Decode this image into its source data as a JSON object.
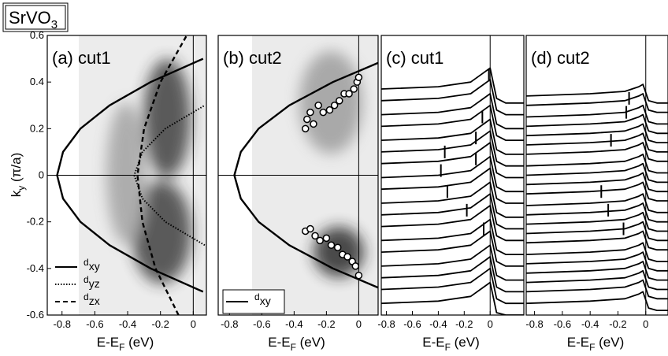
{
  "title": "SrVO",
  "title_sub": "3",
  "ylabel": [
    "k",
    "y",
    " (π/a)"
  ],
  "chart_data": [
    {
      "type": "line",
      "label": "(a) cut1",
      "xlabel": [
        "E-E",
        "F",
        " (eV)"
      ],
      "xlim": [
        -0.89,
        0.08
      ],
      "xticks": [
        -0.8,
        -0.6,
        -0.4,
        -0.2,
        0
      ],
      "ylim": [
        -0.6,
        0.6
      ],
      "yticks": [
        -0.6,
        -0.4,
        -0.2,
        0,
        0.2,
        0.4,
        0.6
      ],
      "zero_lines": true,
      "legend": "lower left",
      "series": [
        {
          "name": "d",
          "name_sub": "xy",
          "style": "solid",
          "color": "#000000",
          "x": [
            0.06,
            -0.26,
            -0.51,
            -0.688,
            -0.794,
            -0.83,
            -0.794,
            -0.688,
            -0.51,
            -0.26,
            0.06
          ],
          "values": [
            -0.5,
            -0.4,
            -0.3,
            -0.2,
            -0.1,
            0,
            0.1,
            0.2,
            0.3,
            0.4,
            0.5
          ]
        },
        {
          "name": "d",
          "name_sub": "yz",
          "style": "dotted",
          "color": "#000000",
          "x": [
            0.07,
            -0.17,
            -0.31,
            -0.36,
            -0.31,
            -0.17,
            0.07
          ],
          "values": [
            -0.3,
            -0.2,
            -0.1,
            0,
            0.1,
            0.2,
            0.3
          ]
        },
        {
          "name": "d",
          "name_sub": "zx",
          "style": "dashed",
          "color": "#000000",
          "x": [
            -0.09,
            -0.23,
            -0.31,
            -0.34,
            -0.3,
            -0.2,
            -0.04
          ],
          "values": [
            -0.6,
            -0.4,
            -0.2,
            0,
            0.2,
            0.4,
            0.6
          ]
        }
      ]
    },
    {
      "type": "line",
      "label": "(b) cut2",
      "xlabel": [
        "E-E",
        "F",
        " (eV)"
      ],
      "xlim": [
        -0.87,
        0.12
      ],
      "xticks": [
        -0.8,
        -0.6,
        -0.4,
        -0.2,
        0
      ],
      "ylim": [
        -0.6,
        0.6
      ],
      "zero_lines": true,
      "legend": "lower left",
      "series": [
        {
          "name": "d",
          "name_sub": "xy",
          "style": "solid",
          "color": "#000000",
          "x": [
            0.18,
            -0.16,
            -0.43,
            -0.62,
            -0.73,
            -0.77,
            -0.73,
            -0.62,
            -0.43,
            -0.16,
            0.18
          ],
          "values": [
            -0.5,
            -0.4,
            -0.3,
            -0.2,
            -0.1,
            0,
            0.1,
            0.2,
            0.3,
            0.4,
            0.5
          ]
        },
        {
          "style": "markers",
          "color": "#000000",
          "x": [
            -0.33,
            -0.32,
            -0.3,
            -0.28,
            -0.25,
            -0.22,
            -0.18,
            -0.15,
            -0.12,
            -0.09,
            -0.06,
            -0.03,
            -0.01,
            0,
            -0.33,
            -0.3,
            -0.27,
            -0.24,
            -0.2,
            -0.17,
            -0.13,
            -0.1,
            -0.07,
            -0.04,
            -0.02,
            0
          ],
          "values": [
            0.2,
            0.24,
            0.27,
            0.22,
            0.3,
            0.27,
            0.28,
            0.3,
            0.32,
            0.35,
            0.35,
            0.37,
            0.4,
            0.42,
            -0.24,
            -0.23,
            -0.26,
            -0.28,
            -0.27,
            -0.3,
            -0.31,
            -0.34,
            -0.35,
            -0.37,
            -0.39,
            -0.43
          ]
        }
      ]
    },
    {
      "type": "line",
      "label": "(c) cut1",
      "xlabel": [
        "E-E",
        "F",
        " (eV)"
      ],
      "xlim": [
        -0.84,
        0.26
      ],
      "xticks": [
        -0.8,
        -0.6,
        -0.4,
        -0.2,
        0
      ],
      "ylim": [
        -0.6,
        0.6
      ],
      "x": [
        -0.84,
        -0.4,
        -0.15,
        -0.05,
        0,
        0.05,
        0.12,
        0.26
      ],
      "series": [
        {
          "style": "solid",
          "color": "#000000",
          "values": [
            0.37,
            0.38,
            0.4,
            0.44,
            0.46,
            0.33,
            0.31,
            0.31
          ]
        },
        {
          "style": "solid",
          "color": "#000000",
          "values": [
            0.32,
            0.33,
            0.35,
            0.39,
            0.41,
            0.28,
            0.26,
            0.26
          ]
        },
        {
          "style": "solid",
          "color": "#000000",
          "values": [
            0.26,
            0.27,
            0.29,
            0.33,
            0.35,
            0.22,
            0.2,
            0.2
          ]
        },
        {
          "style": "solid",
          "color": "#000000",
          "values": [
            0.21,
            0.22,
            0.24,
            0.28,
            0.3,
            0.17,
            0.15,
            0.15
          ]
        },
        {
          "style": "solid",
          "color": "#000000",
          "values": [
            0.15,
            0.16,
            0.18,
            0.22,
            0.24,
            0.11,
            0.09,
            0.09
          ]
        },
        {
          "style": "solid",
          "color": "#000000",
          "values": [
            0.1,
            0.11,
            0.13,
            0.17,
            0.19,
            0.06,
            0.04,
            0.04
          ]
        },
        {
          "style": "solid",
          "color": "#000000",
          "values": [
            0.05,
            0.06,
            0.08,
            0.12,
            0.14,
            0.01,
            -0.01,
            -0.01
          ]
        },
        {
          "style": "solid",
          "color": "#000000",
          "values": [
            -0.01,
            0,
            0.02,
            0.06,
            0.08,
            -0.05,
            -0.07,
            -0.07
          ]
        },
        {
          "style": "solid",
          "color": "#000000",
          "values": [
            -0.06,
            -0.05,
            -0.03,
            0.01,
            0.03,
            -0.1,
            -0.12,
            -0.12
          ]
        },
        {
          "style": "solid",
          "color": "#000000",
          "values": [
            -0.12,
            -0.11,
            -0.09,
            -0.05,
            -0.03,
            -0.16,
            -0.18,
            -0.18
          ]
        },
        {
          "style": "solid",
          "color": "#000000",
          "values": [
            -0.17,
            -0.16,
            -0.14,
            -0.1,
            -0.08,
            -0.21,
            -0.23,
            -0.23
          ]
        },
        {
          "style": "solid",
          "color": "#000000",
          "values": [
            -0.22,
            -0.21,
            -0.19,
            -0.15,
            -0.13,
            -0.26,
            -0.28,
            -0.28
          ]
        },
        {
          "style": "solid",
          "color": "#000000",
          "values": [
            -0.28,
            -0.27,
            -0.25,
            -0.21,
            -0.19,
            -0.32,
            -0.34,
            -0.34
          ]
        },
        {
          "style": "solid",
          "color": "#000000",
          "values": [
            -0.33,
            -0.32,
            -0.3,
            -0.26,
            -0.24,
            -0.37,
            -0.39,
            -0.39
          ]
        },
        {
          "style": "solid",
          "color": "#000000",
          "values": [
            -0.39,
            -0.38,
            -0.36,
            -0.32,
            -0.3,
            -0.43,
            -0.45,
            -0.45
          ]
        },
        {
          "style": "solid",
          "color": "#000000",
          "values": [
            -0.44,
            -0.43,
            -0.41,
            -0.37,
            -0.35,
            -0.48,
            -0.5,
            -0.5
          ]
        },
        {
          "style": "solid",
          "color": "#000000",
          "values": [
            -0.49,
            -0.48,
            -0.46,
            -0.42,
            -0.4,
            -0.53,
            -0.55,
            -0.55
          ]
        },
        {
          "style": "solid",
          "color": "#000000",
          "values": [
            -0.55,
            -0.54,
            -0.52,
            -0.48,
            -0.46,
            -0.59,
            -0.6,
            -0.6
          ]
        },
        {
          "style": "ticks",
          "color": "#000000",
          "x": [
            -0.01,
            -0.06,
            -0.11,
            -0.11,
            -0.35,
            -0.38,
            -0.33,
            -0.18,
            -0.05
          ],
          "values": [
            0.43,
            0.25,
            0.16,
            0.07,
            0.1,
            0.02,
            -0.07,
            -0.15,
            -0.23
          ]
        }
      ]
    },
    {
      "type": "line",
      "label": "(d) cut2",
      "xlabel": [
        "E-E",
        "F",
        " (eV)"
      ],
      "xlim": [
        -0.86,
        0.16
      ],
      "xticks": [
        -0.8,
        -0.6,
        -0.4,
        -0.2,
        0
      ],
      "ylim": [
        -0.6,
        0.6
      ],
      "x": [
        -0.86,
        -0.4,
        -0.15,
        -0.05,
        -0.02,
        0.02,
        0.08,
        0.16
      ],
      "series": [
        {
          "style": "solid",
          "color": "#000000",
          "values": [
            0.34,
            0.35,
            0.36,
            0.38,
            0.39,
            0.32,
            0.31,
            0.31
          ]
        },
        {
          "style": "solid",
          "color": "#000000",
          "values": [
            0.3,
            0.31,
            0.32,
            0.34,
            0.35,
            0.28,
            0.27,
            0.27
          ]
        },
        {
          "style": "solid",
          "color": "#000000",
          "values": [
            0.25,
            0.26,
            0.27,
            0.29,
            0.3,
            0.23,
            0.22,
            0.22
          ]
        },
        {
          "style": "solid",
          "color": "#000000",
          "values": [
            0.21,
            0.22,
            0.23,
            0.25,
            0.26,
            0.19,
            0.18,
            0.18
          ]
        },
        {
          "style": "solid",
          "color": "#000000",
          "values": [
            0.17,
            0.18,
            0.19,
            0.21,
            0.22,
            0.15,
            0.14,
            0.14
          ]
        },
        {
          "style": "solid",
          "color": "#000000",
          "values": [
            0.13,
            0.14,
            0.15,
            0.17,
            0.18,
            0.11,
            0.1,
            0.1
          ]
        },
        {
          "style": "solid",
          "color": "#000000",
          "values": [
            0.09,
            0.1,
            0.11,
            0.13,
            0.14,
            0.07,
            0.06,
            0.06
          ]
        },
        {
          "style": "solid",
          "color": "#000000",
          "values": [
            0.04,
            0.05,
            0.06,
            0.08,
            0.09,
            0.02,
            0.01,
            0.01
          ]
        },
        {
          "style": "solid",
          "color": "#000000",
          "values": [
            0,
            0.01,
            0.02,
            0.04,
            0.05,
            -0.02,
            -0.03,
            -0.03
          ]
        },
        {
          "style": "solid",
          "color": "#000000",
          "values": [
            -0.04,
            -0.03,
            -0.02,
            0,
            0.01,
            -0.06,
            -0.07,
            -0.07
          ]
        },
        {
          "style": "solid",
          "color": "#000000",
          "values": [
            -0.08,
            -0.07,
            -0.06,
            -0.04,
            -0.03,
            -0.1,
            -0.11,
            -0.11
          ]
        },
        {
          "style": "solid",
          "color": "#000000",
          "values": [
            -0.13,
            -0.12,
            -0.11,
            -0.09,
            -0.08,
            -0.15,
            -0.16,
            -0.16
          ]
        },
        {
          "style": "solid",
          "color": "#000000",
          "values": [
            -0.17,
            -0.16,
            -0.15,
            -0.13,
            -0.12,
            -0.19,
            -0.2,
            -0.2
          ]
        },
        {
          "style": "solid",
          "color": "#000000",
          "values": [
            -0.21,
            -0.2,
            -0.19,
            -0.17,
            -0.16,
            -0.23,
            -0.24,
            -0.24
          ]
        },
        {
          "style": "solid",
          "color": "#000000",
          "values": [
            -0.25,
            -0.24,
            -0.23,
            -0.21,
            -0.2,
            -0.27,
            -0.28,
            -0.28
          ]
        },
        {
          "style": "solid",
          "color": "#000000",
          "values": [
            -0.29,
            -0.28,
            -0.27,
            -0.25,
            -0.24,
            -0.31,
            -0.32,
            -0.32
          ]
        },
        {
          "style": "solid",
          "color": "#000000",
          "values": [
            -0.34,
            -0.33,
            -0.32,
            -0.3,
            -0.29,
            -0.36,
            -0.37,
            -0.37
          ]
        },
        {
          "style": "solid",
          "color": "#000000",
          "values": [
            -0.38,
            -0.37,
            -0.36,
            -0.34,
            -0.33,
            -0.4,
            -0.41,
            -0.41
          ]
        },
        {
          "style": "solid",
          "color": "#000000",
          "values": [
            -0.42,
            -0.41,
            -0.4,
            -0.38,
            -0.37,
            -0.44,
            -0.45,
            -0.45
          ]
        },
        {
          "style": "solid",
          "color": "#000000",
          "values": [
            -0.46,
            -0.45,
            -0.44,
            -0.42,
            -0.41,
            -0.48,
            -0.49,
            -0.49
          ]
        },
        {
          "style": "solid",
          "color": "#000000",
          "values": [
            -0.5,
            -0.49,
            -0.48,
            -0.46,
            -0.45,
            -0.52,
            -0.53,
            -0.53
          ]
        },
        {
          "style": "solid",
          "color": "#000000",
          "values": [
            -0.55,
            -0.54,
            -0.53,
            -0.51,
            -0.5,
            -0.57,
            -0.58,
            -0.58
          ]
        },
        {
          "style": "ticks",
          "color": "#000000",
          "x": [
            -0.12,
            -0.14,
            -0.25,
            -0.32,
            -0.27,
            -0.16
          ],
          "values": [
            0.33,
            0.27,
            0.15,
            -0.07,
            -0.15,
            -0.23
          ]
        }
      ]
    }
  ]
}
